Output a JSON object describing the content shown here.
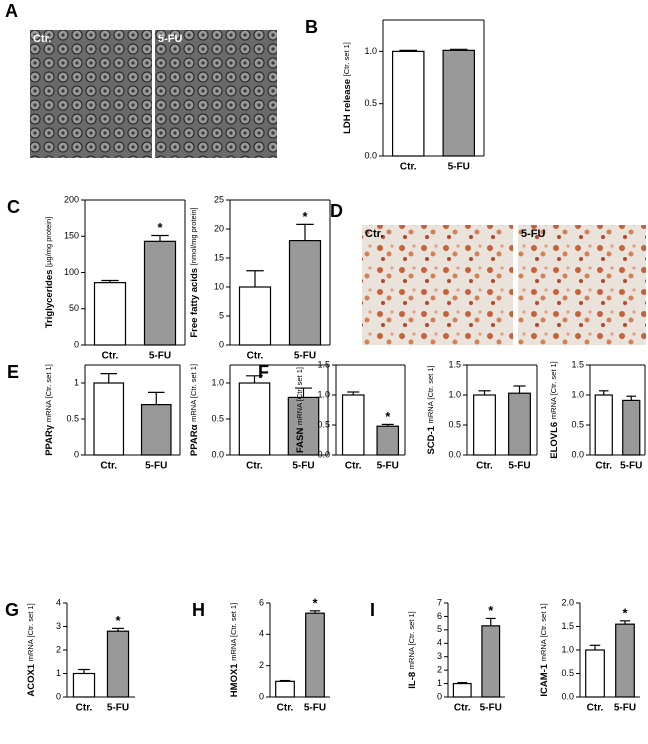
{
  "micrographs": [
    {
      "panel": "A",
      "labels": [
        "Ctr.",
        "5-FU"
      ]
    },
    {
      "panel": "D",
      "labels": [
        "Ctr.",
        "5-FU"
      ]
    }
  ],
  "chart_data": [
    {
      "type": "bar",
      "panel": "B",
      "ylabel": "LDH release",
      "ylabel_unit": "[Ctr. set 1]",
      "categories": [
        "Ctr.",
        "5-FU"
      ],
      "values": [
        1.0,
        1.01
      ],
      "errors": [
        0.01,
        0.01
      ],
      "colors": [
        "#ffffff",
        "#999999"
      ],
      "ylim": [
        0,
        1.3
      ],
      "yticks": [
        {
          "value": 0,
          "label": "0.0"
        },
        0.5,
        {
          "value": 1,
          "label": "1.0"
        }
      ],
      "frame": true
    },
    {
      "type": "bar",
      "panel": "C",
      "ylabel": "Triglycerides",
      "ylabel_unit": "[µg/mg protein]",
      "categories": [
        "Ctr.",
        "5-FU"
      ],
      "values": [
        86,
        143
      ],
      "errors": [
        3,
        8
      ],
      "colors": [
        "#ffffff",
        "#999999"
      ],
      "ylim": [
        0,
        200
      ],
      "yticks": [
        0,
        50,
        100,
        150,
        200
      ],
      "frame": true,
      "annotations": [
        {
          "x": "5-FU",
          "text": "*"
        }
      ]
    },
    {
      "type": "bar",
      "ylabel": "Free fatty acids",
      "ylabel_unit": "[nmol/mg protein]",
      "categories": [
        "Ctr.",
        "5-FU"
      ],
      "values": [
        10,
        18
      ],
      "errors": [
        2.8,
        2.8
      ],
      "colors": [
        "#ffffff",
        "#999999"
      ],
      "ylim": [
        0,
        25
      ],
      "yticks": [
        0,
        5,
        10,
        15,
        20,
        25
      ],
      "frame": true,
      "annotations": [
        {
          "x": "5-FU",
          "text": "*"
        }
      ]
    },
    {
      "type": "bar",
      "panel": "E",
      "ylabel": "PPARγ",
      "ylabel_unit": "mRNA [Ctr. set 1]",
      "categories": [
        "Ctr.",
        "5-FU"
      ],
      "values": [
        1.0,
        0.7
      ],
      "errors": [
        0.13,
        0.17
      ],
      "colors": [
        "#ffffff",
        "#999999"
      ],
      "ylim": [
        0,
        1.25
      ],
      "yticks": [
        0,
        0.5,
        1
      ],
      "frame": true
    },
    {
      "type": "bar",
      "ylabel": "PPARα",
      "ylabel_unit": "mRNA [Ctr. set 1]",
      "categories": [
        "Ctr.",
        "5-FU"
      ],
      "values": [
        1.0,
        0.8
      ],
      "errors": [
        0.1,
        0.13
      ],
      "colors": [
        "#ffffff",
        "#999999"
      ],
      "ylim": [
        0,
        1.25
      ],
      "yticks": [
        {
          "value": 0,
          "label": "0.0"
        },
        0.5,
        {
          "value": 1,
          "label": "1.0"
        }
      ],
      "frame": true
    },
    {
      "type": "bar",
      "panel": "F",
      "ylabel": "FASN",
      "ylabel_unit": "mRNA [Ctr. set 1]",
      "categories": [
        "Ctr.",
        "5-FU"
      ],
      "values": [
        1.0,
        0.48
      ],
      "errors": [
        0.05,
        0.03
      ],
      "colors": [
        "#ffffff",
        "#999999"
      ],
      "ylim": [
        0,
        1.5
      ],
      "yticks": [
        {
          "value": 0,
          "label": "0.0"
        },
        0.5,
        {
          "value": 1,
          "label": "1.0"
        },
        1.5
      ],
      "frame": true,
      "annotations": [
        {
          "x": "5-FU",
          "text": "*"
        }
      ]
    },
    {
      "type": "bar",
      "ylabel": "SCD-1",
      "ylabel_unit": "mRNA [Ctr. set 1]",
      "categories": [
        "Ctr.",
        "5-FU"
      ],
      "values": [
        1.0,
        1.03
      ],
      "errors": [
        0.07,
        0.12
      ],
      "colors": [
        "#ffffff",
        "#999999"
      ],
      "ylim": [
        0,
        1.5
      ],
      "yticks": [
        {
          "value": 0,
          "label": "0.0"
        },
        0.5,
        {
          "value": 1,
          "label": "1.0"
        },
        1.5
      ],
      "frame": true
    },
    {
      "type": "bar",
      "ylabel": "ELOVL6",
      "ylabel_unit": "mRNA [Ctr. set 1]",
      "categories": [
        "Ctr.",
        "5-FU"
      ],
      "values": [
        1.0,
        0.91
      ],
      "errors": [
        0.07,
        0.07
      ],
      "colors": [
        "#ffffff",
        "#999999"
      ],
      "ylim": [
        0,
        1.5
      ],
      "yticks": [
        {
          "value": 0,
          "label": "0.0"
        },
        0.5,
        {
          "value": 1,
          "label": "1.0"
        },
        1.5
      ],
      "frame": true
    },
    {
      "type": "bar",
      "panel": "G",
      "ylabel": "ACOX1",
      "ylabel_unit": "mRNA [Ctr. set 1]",
      "categories": [
        "Ctr.",
        "5-FU"
      ],
      "values": [
        1.0,
        2.8
      ],
      "errors": [
        0.17,
        0.12
      ],
      "colors": [
        "#ffffff",
        "#999999"
      ],
      "ylim": [
        0,
        4
      ],
      "yticks": [
        0,
        1,
        2,
        3,
        4
      ],
      "frame": false,
      "annotations": [
        {
          "x": "5-FU",
          "text": "*"
        }
      ]
    },
    {
      "type": "bar",
      "panel": "H",
      "ylabel": "HMOX1",
      "ylabel_unit": "mRNA [Ctr. set 1]",
      "categories": [
        "Ctr.",
        "5-FU"
      ],
      "values": [
        1.0,
        5.35
      ],
      "errors": [
        0.05,
        0.15
      ],
      "colors": [
        "#ffffff",
        "#999999"
      ],
      "ylim": [
        0,
        6
      ],
      "yticks": [
        0,
        2,
        4,
        6
      ],
      "frame": false,
      "annotations": [
        {
          "x": "5-FU",
          "text": "*"
        }
      ]
    },
    {
      "type": "bar",
      "panel": "I",
      "ylabel": "IL-8",
      "ylabel_unit": "mRNA [Ctr. set 1]",
      "categories": [
        "Ctr.",
        "5-FU"
      ],
      "values": [
        1.0,
        5.3
      ],
      "errors": [
        0.07,
        0.55
      ],
      "colors": [
        "#ffffff",
        "#999999"
      ],
      "ylim": [
        0,
        7
      ],
      "yticks": [
        0,
        1,
        2,
        3,
        4,
        5,
        6,
        7
      ],
      "frame": false,
      "annotations": [
        {
          "x": "5-FU",
          "text": "*"
        }
      ]
    },
    {
      "type": "bar",
      "ylabel": "ICAM-1",
      "ylabel_unit": "mRNA [Ctr. set 1]",
      "categories": [
        "Ctr.",
        "5-FU"
      ],
      "values": [
        1.0,
        1.55
      ],
      "errors": [
        0.1,
        0.07
      ],
      "colors": [
        "#ffffff",
        "#999999"
      ],
      "ylim": [
        0,
        2
      ],
      "yticks": [
        {
          "value": 0,
          "label": "0.0"
        },
        0.5,
        {
          "value": 1,
          "label": "1.0"
        },
        1.5,
        {
          "value": 2,
          "label": "2.0"
        }
      ],
      "frame": false,
      "annotations": [
        {
          "x": "5-FU",
          "text": "*"
        }
      ]
    }
  ]
}
